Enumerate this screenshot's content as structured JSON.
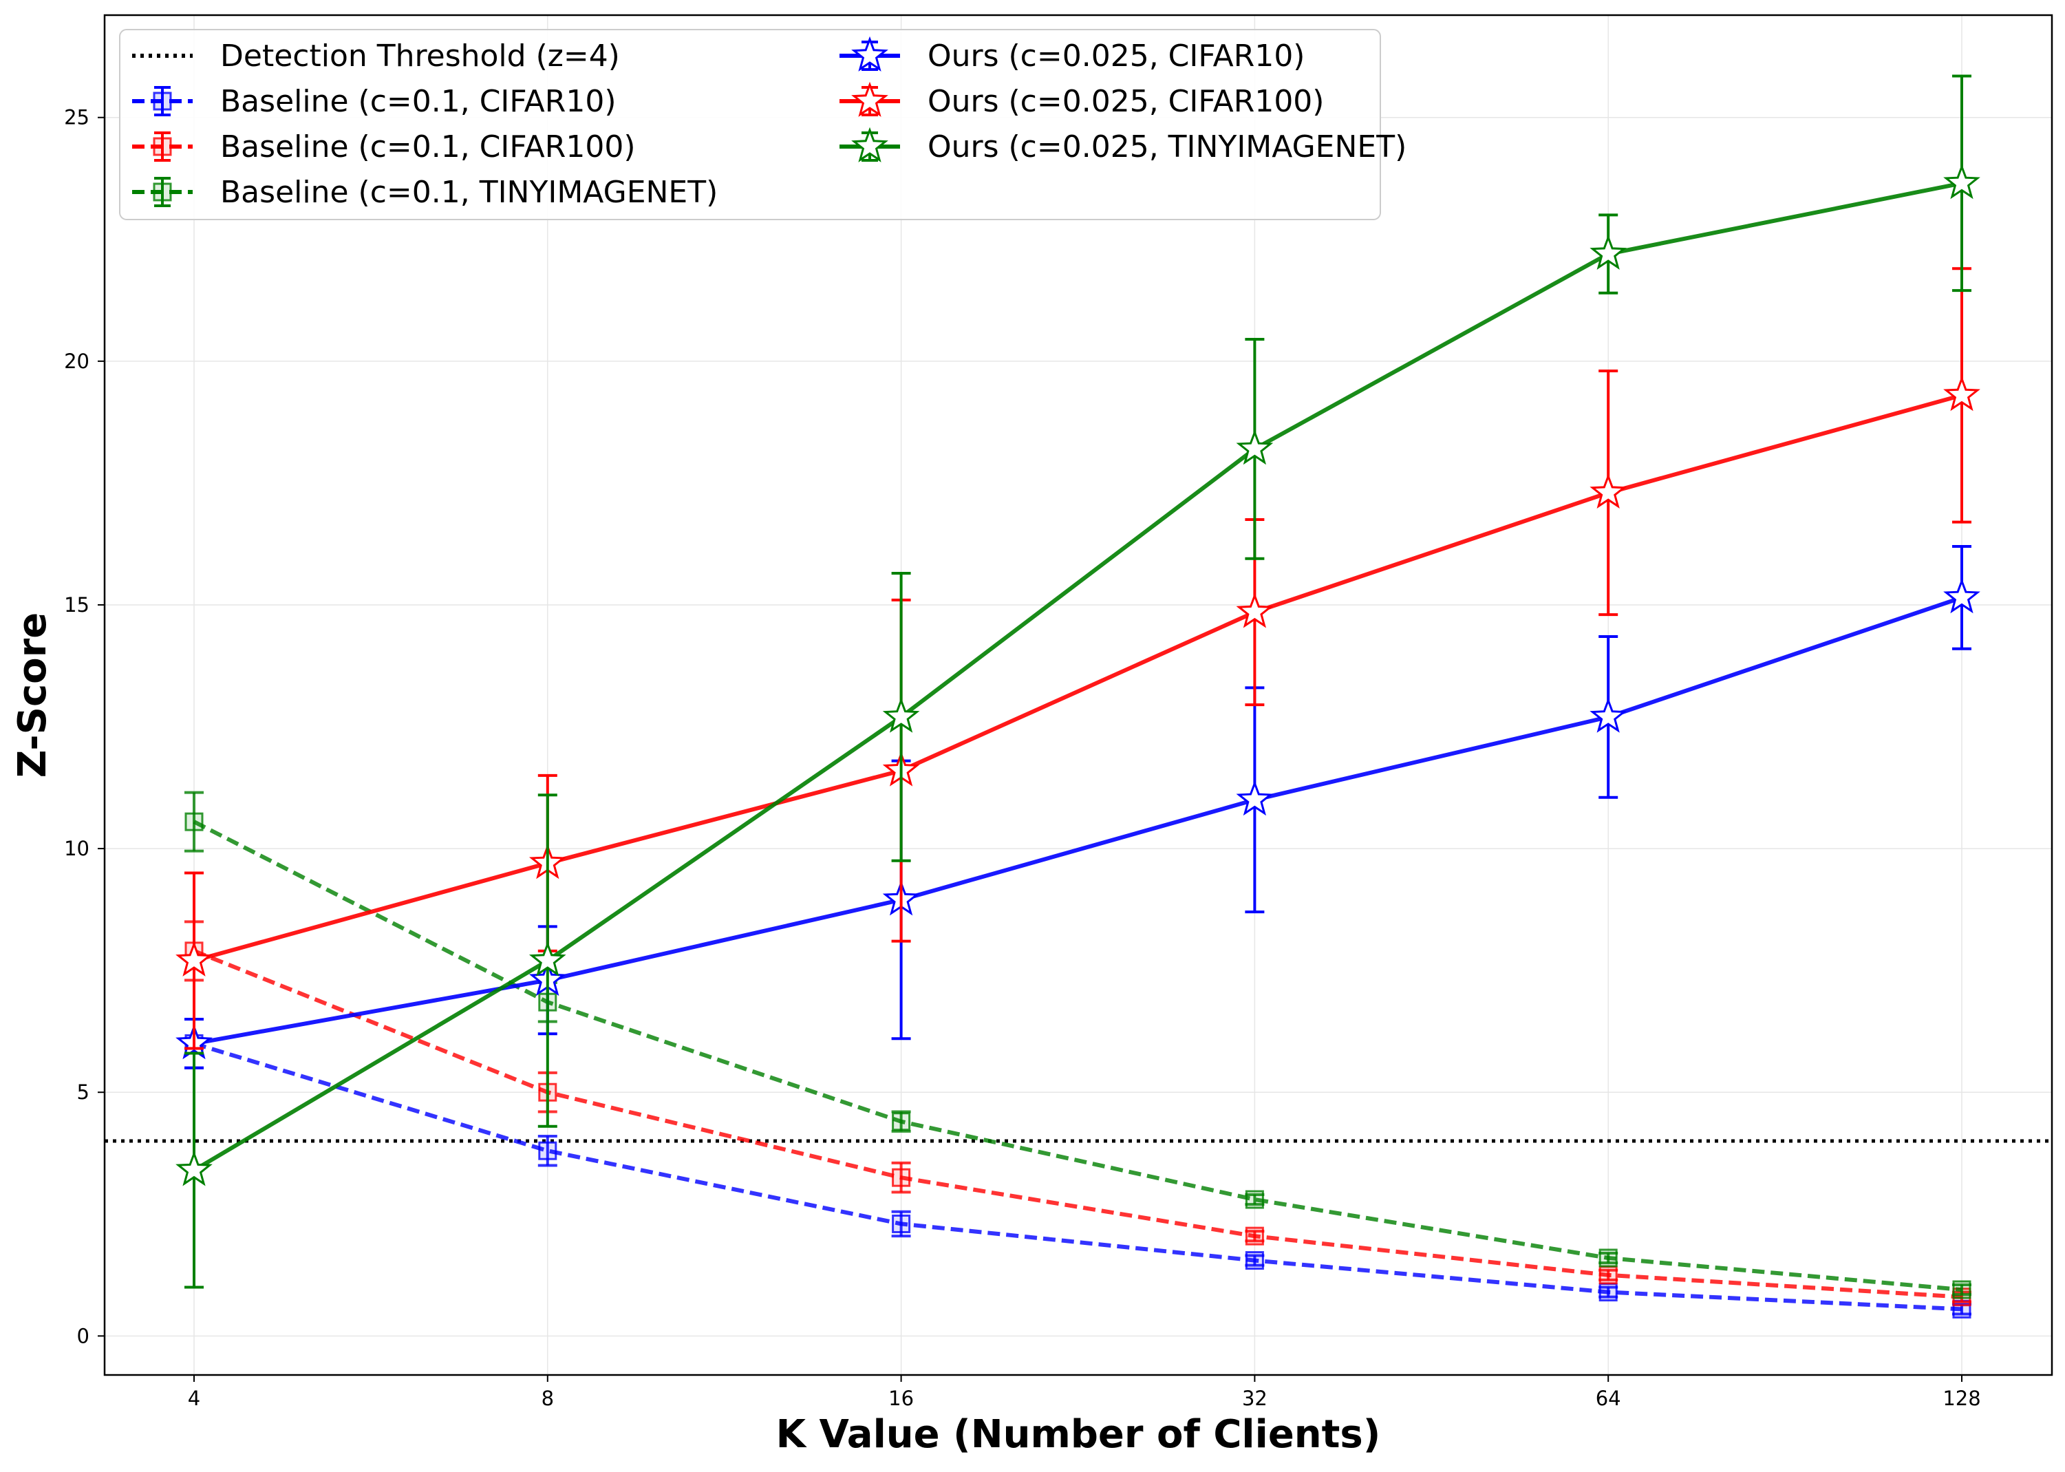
{
  "chart_data": {
    "type": "line",
    "xlabel": "K Value (Number of Clients)",
    "ylabel": "Z-Score",
    "x_scale": "log2",
    "x": [
      4,
      8,
      16,
      32,
      64,
      128
    ],
    "x_tick_labels": [
      "4",
      "8",
      "16",
      "32",
      "64",
      "128"
    ],
    "ylim": [
      -0.8,
      27.1
    ],
    "y_ticks": [
      0,
      5,
      10,
      15,
      20,
      25
    ],
    "y_tick_labels": [
      "0",
      "5",
      "10",
      "15",
      "20",
      "25"
    ],
    "grid": true,
    "legend_position": "top-left",
    "threshold": {
      "name": "Detection Threshold (z=4)",
      "value": 4,
      "color": "#000000",
      "style": "dotted"
    },
    "series": [
      {
        "name": "Baseline (c=0.1, CIFAR10)",
        "color": "#0000ff",
        "style": "dashed",
        "marker": "square",
        "values": [
          6.0,
          3.8,
          2.3,
          1.55,
          0.9,
          0.55
        ],
        "err": [
          0.5,
          0.3,
          0.25,
          0.1,
          0.1,
          0.1
        ]
      },
      {
        "name": "Baseline (c=0.1, CIFAR100)",
        "color": "#ff0000",
        "style": "dashed",
        "marker": "square",
        "values": [
          7.9,
          5.0,
          3.25,
          2.05,
          1.25,
          0.8
        ],
        "err": [
          0.6,
          0.4,
          0.3,
          0.1,
          0.1,
          0.1
        ]
      },
      {
        "name": "Baseline (c=0.1, TINYIMAGENET)",
        "color": "#008000",
        "style": "dashed",
        "marker": "square",
        "values": [
          10.55,
          6.85,
          4.4,
          2.8,
          1.6,
          0.95
        ],
        "err": [
          0.6,
          0.4,
          0.2,
          0.1,
          0.1,
          0.1
        ]
      },
      {
        "name": "Ours (c=0.025, CIFAR10)",
        "color": "#0000ff",
        "style": "solid",
        "marker": "star",
        "values": [
          6.0,
          7.3,
          8.95,
          11.0,
          12.7,
          15.15
        ],
        "err": [
          0.5,
          1.1,
          2.85,
          2.3,
          1.65,
          1.05
        ]
      },
      {
        "name": "Ours (c=0.025, CIFAR100)",
        "color": "#ff0000",
        "style": "solid",
        "marker": "star",
        "values": [
          7.7,
          9.7,
          11.6,
          14.85,
          17.3,
          19.3
        ],
        "err": [
          1.8,
          1.8,
          3.5,
          1.9,
          2.5,
          2.6
        ]
      },
      {
        "name": "Ours (c=0.025, TINYIMAGENET)",
        "color": "#008000",
        "style": "solid",
        "marker": "star",
        "values": [
          3.4,
          7.7,
          12.7,
          18.2,
          22.2,
          23.65
        ],
        "err": [
          2.4,
          3.4,
          2.95,
          2.25,
          0.8,
          2.2
        ]
      }
    ]
  }
}
